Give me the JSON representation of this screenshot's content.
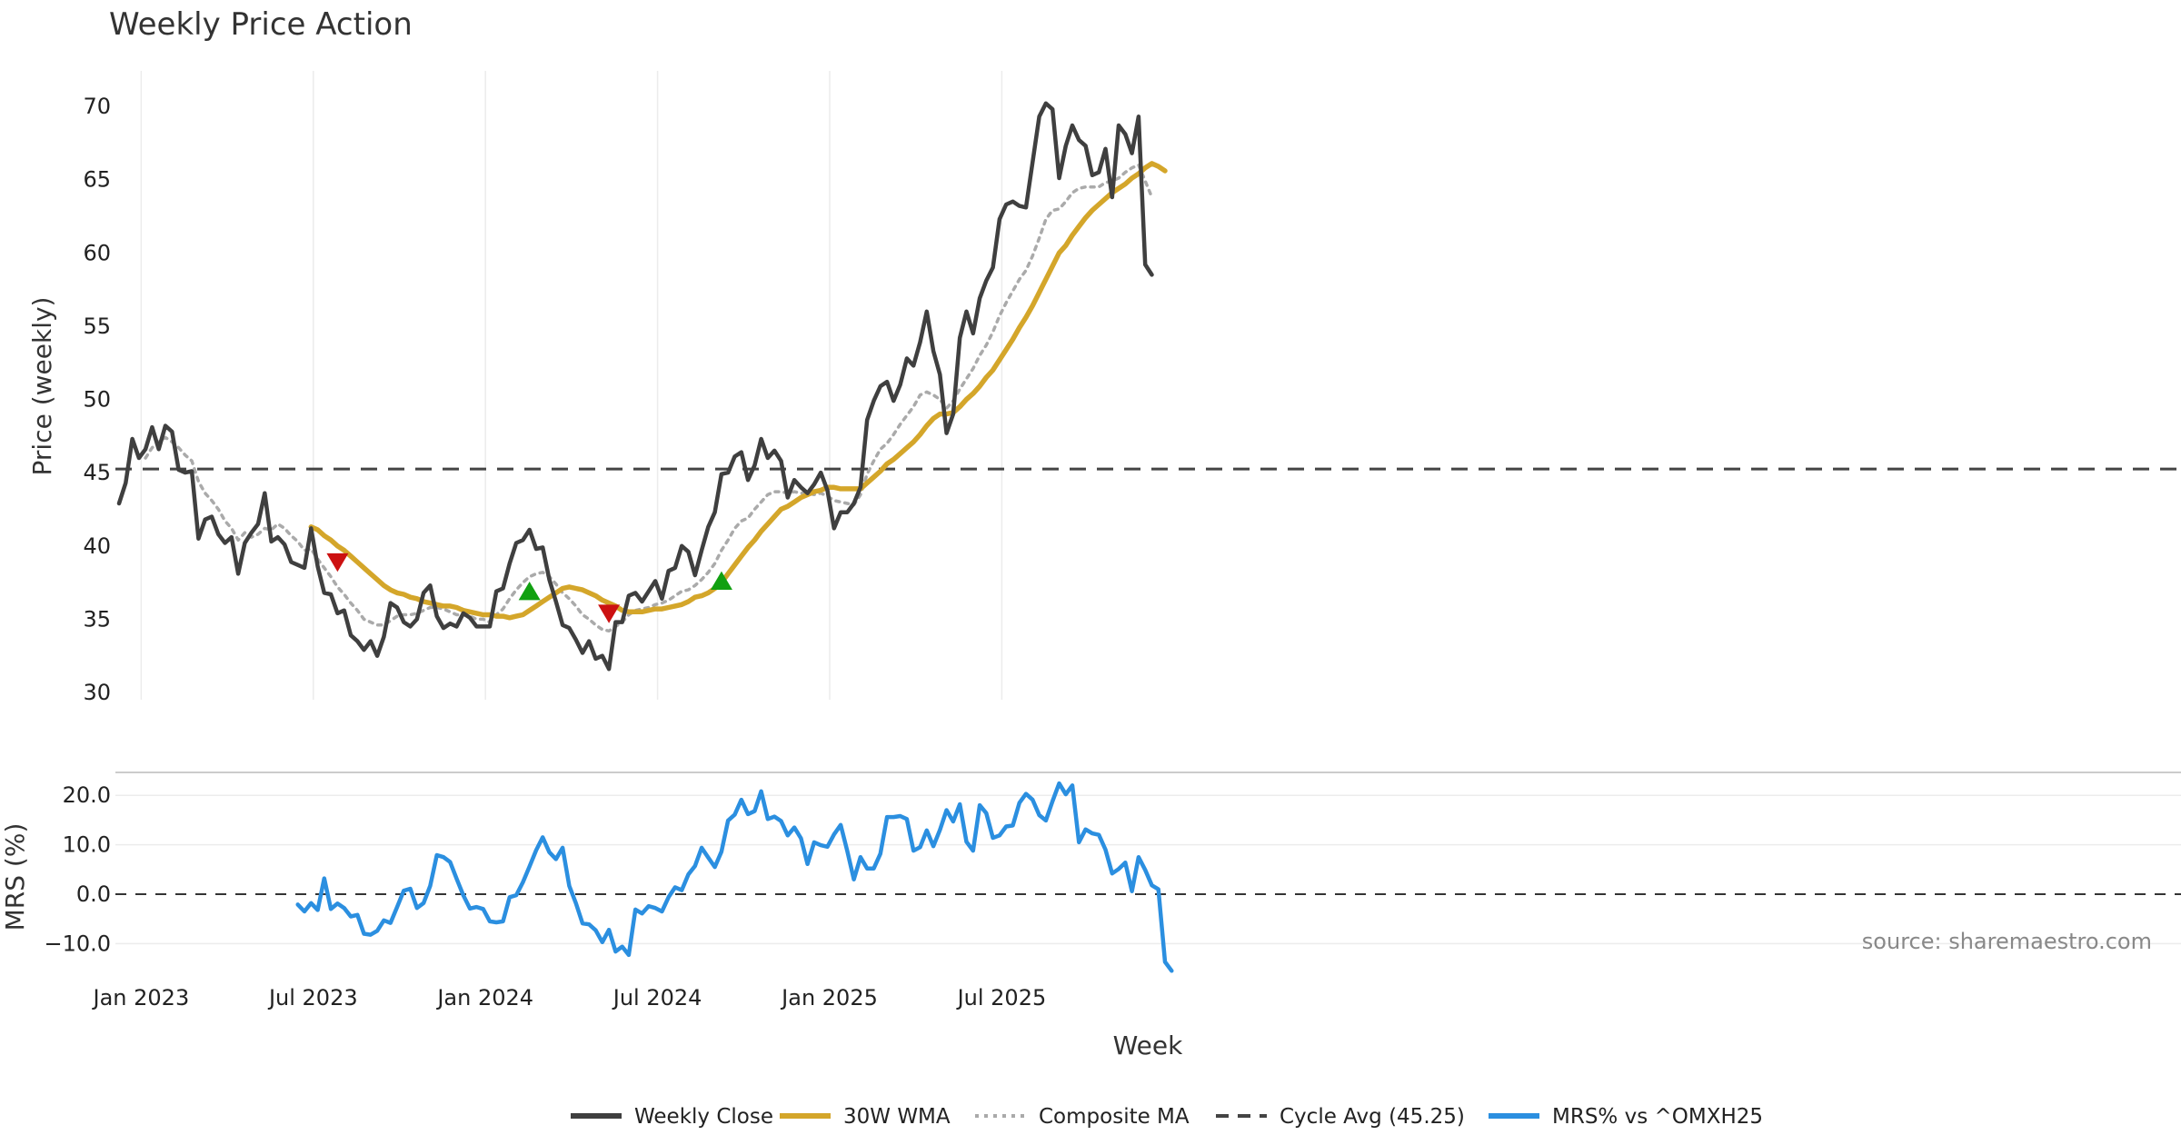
{
  "chart_data": {
    "type": "line",
    "title": "Weekly Price Action",
    "x_tick_labels": [
      "Jan 2023",
      "Jul 2023",
      "Jan 2024",
      "Jul 2024",
      "Jan 2025",
      "Jul 2025"
    ],
    "xlabel": "Week",
    "source": "source: sharemaestro.com",
    "price_panel": {
      "ylabel": "Price (weekly)",
      "ylim": [
        30,
        71.5
      ],
      "yticks": [
        30,
        35,
        40,
        45,
        50,
        55,
        60,
        65,
        70
      ],
      "cycle_avg": 45.25,
      "series": [
        {
          "name": "Weekly Close",
          "color": "#3f3f3f",
          "values": [
            42.9,
            44.3,
            47.3,
            46.0,
            46.6,
            48.1,
            46.6,
            48.2,
            47.8,
            45.2,
            45.0,
            45.1,
            40.5,
            41.8,
            42.0,
            40.8,
            40.2,
            40.6,
            38.1,
            40.2,
            40.9,
            41.5,
            43.6,
            40.3,
            40.6,
            40.1,
            38.9,
            38.7,
            38.5,
            41.2,
            38.6,
            36.8,
            36.7,
            35.4,
            35.6,
            33.9,
            33.5,
            32.9,
            33.5,
            32.5,
            33.8,
            36.1,
            35.8,
            34.8,
            34.5,
            35.0,
            36.8,
            37.3,
            35.2,
            34.4,
            34.7,
            34.5,
            35.4,
            35.1,
            34.5,
            34.5,
            34.5,
            36.9,
            37.1,
            38.8,
            40.2,
            40.4,
            41.1,
            39.8,
            39.9,
            37.7,
            36.2,
            34.6,
            34.4,
            33.6,
            32.7,
            33.5,
            32.3,
            32.5,
            31.6,
            34.8,
            34.8,
            36.6,
            36.8,
            36.2,
            36.9,
            37.6,
            36.4,
            38.3,
            38.5,
            40.0,
            39.6,
            38.0,
            39.7,
            41.3,
            42.3,
            44.9,
            45.0,
            46.1,
            46.4,
            44.5,
            45.5,
            47.3,
            46.0,
            46.5,
            45.8,
            43.3,
            44.5,
            44.0,
            43.6,
            44.2,
            45.0,
            43.8,
            41.2,
            42.3,
            42.3,
            42.9,
            44.0,
            48.6,
            49.9,
            50.9,
            51.2,
            49.9,
            51.0,
            52.8,
            52.3,
            53.9,
            56.0,
            53.3,
            51.7,
            47.7,
            49.0,
            54.2,
            56.0,
            54.5,
            56.9,
            58.1,
            59.0,
            62.3,
            63.3,
            63.5,
            63.2,
            63.1,
            66.2,
            69.3,
            70.2,
            69.8,
            65.1,
            67.3,
            68.7,
            67.7,
            67.3,
            65.3,
            65.5,
            67.1,
            63.8,
            68.7,
            68.1,
            66.8,
            69.3,
            59.2,
            58.5
          ]
        },
        {
          "name": "30W WMA",
          "color": "#d4a62a",
          "start_index": 29,
          "values": [
            41.3,
            41.1,
            40.7,
            40.4,
            40.0,
            39.7,
            39.3,
            38.9,
            38.5,
            38.1,
            37.7,
            37.3,
            37.0,
            36.8,
            36.7,
            36.5,
            36.4,
            36.2,
            36.1,
            36.0,
            35.9,
            35.9,
            35.8,
            35.6,
            35.5,
            35.4,
            35.3,
            35.3,
            35.2,
            35.2,
            35.1,
            35.2,
            35.3,
            35.6,
            35.9,
            36.2,
            36.5,
            36.8,
            37.1,
            37.2,
            37.1,
            37.0,
            36.8,
            36.6,
            36.3,
            36.1,
            35.9,
            35.6,
            35.5,
            35.5,
            35.5,
            35.6,
            35.7,
            35.7,
            35.8,
            35.9,
            36.0,
            36.2,
            36.5,
            36.6,
            36.8,
            37.1,
            37.5,
            38.1,
            38.7,
            39.3,
            39.9,
            40.4,
            41.0,
            41.5,
            42.0,
            42.5,
            42.7,
            43.0,
            43.3,
            43.5,
            43.7,
            43.8,
            44.0,
            44.0,
            43.9,
            43.9,
            43.9,
            43.9,
            44.3,
            44.7,
            45.1,
            45.6,
            45.9,
            46.3,
            46.7,
            47.1,
            47.6,
            48.2,
            48.7,
            49.0,
            49.0,
            49.1,
            49.5,
            50.0,
            50.4,
            50.9,
            51.5,
            52.0,
            52.7,
            53.4,
            54.1,
            54.9,
            55.6,
            56.4,
            57.3,
            58.2,
            59.1,
            60.0,
            60.5,
            61.2,
            61.8,
            62.4,
            62.9,
            63.3,
            63.7,
            64.1,
            64.4,
            64.7,
            65.1,
            65.4,
            65.8,
            66.1,
            65.9,
            65.6
          ]
        },
        {
          "name": "Composite MA",
          "color": "#aaaaaa",
          "values": [
            null,
            null,
            null,
            null,
            46.0,
            46.7,
            47.1,
            47.4,
            47.1,
            46.7,
            46.2,
            45.8,
            44.4,
            43.6,
            43.1,
            42.5,
            41.7,
            41.2,
            40.4,
            40.9,
            40.6,
            40.8,
            41.2,
            41.1,
            41.5,
            41.2,
            40.7,
            40.3,
            39.7,
            39.8,
            39.1,
            38.5,
            37.9,
            37.2,
            36.7,
            36.1,
            35.6,
            35.0,
            34.8,
            34.6,
            34.6,
            34.9,
            35.2,
            35.3,
            35.3,
            35.4,
            35.6,
            35.8,
            35.8,
            35.7,
            35.5,
            35.3,
            35.3,
            35.2,
            35.0,
            35.0,
            34.8,
            35.3,
            35.7,
            36.4,
            37.0,
            37.5,
            37.9,
            38.1,
            38.2,
            37.9,
            37.4,
            36.8,
            36.4,
            35.9,
            35.3,
            35.0,
            34.6,
            34.3,
            34.2,
            34.5,
            34.8,
            35.3,
            35.6,
            35.7,
            35.8,
            36.0,
            36.1,
            36.3,
            36.6,
            36.9,
            37.0,
            37.3,
            37.7,
            38.2,
            38.8,
            39.7,
            40.4,
            41.2,
            41.7,
            41.9,
            42.5,
            43.0,
            43.5,
            43.7,
            43.7,
            43.6,
            43.7,
            43.6,
            43.6,
            43.5,
            43.6,
            43.4,
            43.1,
            43.0,
            42.9,
            42.8,
            43.5,
            44.9,
            45.8,
            46.6,
            47.0,
            47.6,
            48.3,
            48.9,
            49.5,
            50.3,
            50.5,
            50.3,
            50.0,
            49.4,
            49.9,
            50.7,
            51.4,
            52.1,
            53.0,
            53.7,
            54.6,
            55.7,
            56.6,
            57.4,
            58.2,
            58.8,
            59.8,
            61.0,
            62.3,
            62.9,
            63.0,
            63.5,
            64.1,
            64.4,
            64.5,
            64.5,
            64.5,
            64.8,
            64.9,
            65.1,
            65.5,
            65.8,
            66.0,
            64.9,
            63.8
          ]
        },
        {
          "name": "Cycle Avg (45.25)",
          "color": "#444444",
          "values": []
        }
      ],
      "markers": [
        {
          "type": "sell",
          "index": 33,
          "value": 38.9,
          "color": "#cc1111"
        },
        {
          "type": "buy",
          "index": 62,
          "value": 36.9,
          "color": "#11a011"
        },
        {
          "type": "sell",
          "index": 74,
          "value": 35.4,
          "color": "#cc1111"
        },
        {
          "type": "buy",
          "index": 91,
          "value": 37.6,
          "color": "#11a011"
        }
      ]
    },
    "mrs_panel": {
      "ylabel": "MRS (%)",
      "ylim": [
        -16,
        24
      ],
      "yticks": [
        -10,
        0,
        10,
        20
      ],
      "ytick_labels": [
        "−10.0",
        "0.0",
        "10.0",
        "20.0"
      ],
      "series": [
        {
          "name": "MRS% vs ^OMXH25",
          "color": "#2b8fe0",
          "start_index": 27,
          "values": [
            -2.1,
            -3.5,
            -1.8,
            -3.2,
            3.2,
            -3.0,
            -1.9,
            -2.8,
            -4.5,
            -4.2,
            -8.0,
            -8.2,
            -7.4,
            -5.3,
            -5.8,
            -2.6,
            0.7,
            1.1,
            -2.8,
            -1.8,
            1.7,
            7.9,
            7.5,
            6.5,
            3.1,
            -0.2,
            -2.9,
            -2.6,
            -3.0,
            -5.5,
            -5.7,
            -5.5,
            -0.6,
            -0.2,
            2.4,
            5.6,
            8.9,
            11.5,
            8.5,
            7.1,
            9.4,
            1.7,
            -1.8,
            -5.9,
            -6.1,
            -7.3,
            -9.7,
            -7.2,
            -11.6,
            -10.6,
            -12.3,
            -3.1,
            -3.9,
            -2.4,
            -2.8,
            -3.5,
            -0.6,
            1.4,
            0.8,
            4.0,
            5.7,
            9.4,
            7.4,
            5.5,
            8.6,
            14.9,
            16.1,
            19.1,
            16.2,
            16.8,
            20.8,
            15.2,
            15.7,
            14.8,
            11.9,
            13.5,
            11.3,
            6.1,
            10.5,
            9.9,
            9.6,
            12.1,
            14.0,
            8.7,
            3.0,
            7.5,
            5.2,
            5.2,
            8.2,
            15.6,
            15.6,
            15.8,
            15.2,
            8.8,
            9.5,
            12.9,
            9.7,
            13.0,
            17.0,
            14.7,
            18.2,
            10.6,
            8.8,
            18.0,
            16.4,
            11.4,
            11.9,
            13.7,
            13.9,
            18.5,
            20.3,
            19.1,
            16.0,
            14.9,
            18.8,
            22.4,
            20.2,
            22.0,
            10.5,
            13.1,
            12.3,
            12.0,
            9.0,
            4.2,
            5.1,
            6.4,
            0.6,
            7.5,
            4.9,
            1.8,
            1.0,
            -13.7,
            -15.5
          ]
        }
      ]
    },
    "legend": [
      {
        "label": "Weekly Close",
        "color": "#3f3f3f",
        "style": "solid"
      },
      {
        "label": "30W WMA",
        "color": "#d4a62a",
        "style": "solid"
      },
      {
        "label": "Composite MA",
        "color": "#aaaaaa",
        "style": "dotted"
      },
      {
        "label": "Cycle Avg (45.25)",
        "color": "#444444",
        "style": "dashed"
      },
      {
        "label": "MRS% vs ^OMXH25",
        "color": "#2b8fe0",
        "style": "solid"
      }
    ]
  }
}
